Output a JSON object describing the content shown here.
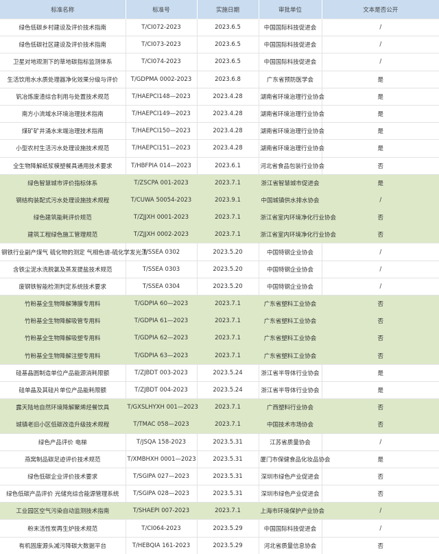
{
  "colors": {
    "header_bg": "#c9dcf0",
    "highlight_row": "#dde8c9"
  },
  "headers": [
    "标准名称",
    "标准号",
    "实施日期",
    "审批单位",
    "文本是否公开"
  ],
  "rows": [
    {
      "name": "绿色低碳乡村建设及评价技术指南",
      "code": "T/CI072-2023",
      "date": "2023.6.5",
      "org": "中国国际科技促进会",
      "public": "/",
      "highlight": false
    },
    {
      "name": "绿色低碳社区建设及评价技术指南",
      "code": "T/CI073-2023",
      "date": "2023.6.5",
      "org": "中国国际科技促进会",
      "public": "/",
      "highlight": false
    },
    {
      "name": "卫星对地观测下的草地碳指标监测体系",
      "code": "T/CI074-2023",
      "date": "2023.6.5",
      "org": "中国国际科技促进会",
      "public": "/",
      "highlight": false
    },
    {
      "name": "生活饮用水水质处理器净化效果分级与评价",
      "code": "T/GDPMA 0002-2023",
      "date": "2023.6.8",
      "org": "广东省预防医学会",
      "public": "是",
      "highlight": false
    },
    {
      "name": "钒冶炼废渣综合利用与处置技术规范",
      "code": "T/HAEPCI148—2023",
      "date": "2023.4.28",
      "org": "湖南省环境治理行业协会",
      "public": "是",
      "highlight": false
    },
    {
      "name": "南方小流域水环境治理技术指南",
      "code": "T/HAEPCI149—2023",
      "date": "2023.4.28",
      "org": "湖南省环境治理行业协会",
      "public": "是",
      "highlight": false
    },
    {
      "name": "煤矿矿井涌水末端治理技术指南",
      "code": "T/HAEPCI150—2023",
      "date": "2023.4.28",
      "org": "湖南省环境治理行业协会",
      "public": "是",
      "highlight": false
    },
    {
      "name": "小型农村生活污水处理设施技术规范",
      "code": "T/HAEPCI151—2023",
      "date": "2023.4.28",
      "org": "湖南省环境治理行业协会",
      "public": "是",
      "highlight": false
    },
    {
      "name": "全生物降解纸浆模塑餐具通用技术要求",
      "code": "T/HBFPIA 014—2023",
      "date": "2023.6.1",
      "org": "河北省食品包装行业协会",
      "public": "否",
      "highlight": false
    },
    {
      "name": "绿色智慧城市评价指标体系",
      "code": "T/ZSCPA 001-2023",
      "date": "2023.7.1",
      "org": "浙江省智慧城市促进会",
      "public": "是",
      "highlight": true
    },
    {
      "name": "钢结构装配式污水处理设施技术规程",
      "code": "T/CUWA 50054-2023",
      "date": "2023.9.1",
      "org": "中国城镇供水排水协会",
      "public": "/",
      "highlight": true
    },
    {
      "name": "绿色建筑能耗评价规范",
      "code": "T/ZJJXH 0001-2023",
      "date": "2023.7.1",
      "org": "浙江省室内环境净化行业协会",
      "public": "否",
      "highlight": true
    },
    {
      "name": "建筑工程绿色施工管理规范",
      "code": "T/ZJJXH 0002-2023",
      "date": "2023.7.1",
      "org": "浙江省室内环境净化行业协会",
      "public": "否",
      "highlight": true
    },
    {
      "name": "钢铁行业副产煤气 硫化物的测定 气相色谱-硫化学发光法",
      "code": "T/SSEA 0302",
      "date": "2023.5.20",
      "org": "中国特钢企业协会",
      "public": "/",
      "highlight": false
    },
    {
      "name": "含铁尘泥水洗脱氯及蒸发提盐技术规范",
      "code": "T/SSEA 0303",
      "date": "2023.5.20",
      "org": "中国特钢企业协会",
      "public": "/",
      "highlight": false
    },
    {
      "name": "废钢铁智能检测判定系统技术要求",
      "code": "T/SSEA 0304",
      "date": "2023.5.20",
      "org": "中国特钢企业协会",
      "public": "/",
      "highlight": false
    },
    {
      "name": "竹粉基全生物降解薄膜专用料",
      "code": "T/GDPIA 60—2023",
      "date": "2023.7.1",
      "org": "广东省塑料工业协会",
      "public": "否",
      "highlight": true
    },
    {
      "name": "竹粉基全生物降解吸管专用料",
      "code": "T/GDPIA 61—2023",
      "date": "2023.7.1",
      "org": "广东省塑料工业协会",
      "public": "否",
      "highlight": true
    },
    {
      "name": "竹粉基全生物降解吸塑专用料",
      "code": "T/GDPIA 62—2023",
      "date": "2023.7.1",
      "org": "广东省塑料工业协会",
      "public": "否",
      "highlight": true
    },
    {
      "name": "竹粉基全生物降解注塑专用料",
      "code": "T/GDPIA 63—2023",
      "date": "2023.7.1",
      "org": "广东省塑料工业协会",
      "public": "否",
      "highlight": true
    },
    {
      "name": "硅基晶圆制造单位产品能源消耗限额",
      "code": "T/ZJBDT 003-2023",
      "date": "2023.5.24",
      "org": "浙江省半导体行业协会",
      "public": "是",
      "highlight": false
    },
    {
      "name": "硅单晶及其硅片单位产品能耗限额",
      "code": "T/ZJBDT 004-2023",
      "date": "2023.5.24",
      "org": "浙江省半导体行业协会",
      "public": "是",
      "highlight": false
    },
    {
      "name": "露天陆地自然环境降解聚烯烃餐饮具",
      "code": "T/GXSLHYXH 001—2023",
      "date": "2023.7.1",
      "org": "广西塑料行业协会",
      "public": "否",
      "highlight": true
    },
    {
      "name": "城镇老旧小区低碳改造升级技术规程",
      "code": "T/TMAC 058—2023",
      "date": "2023.7.1",
      "org": "中国技术市场协会",
      "public": "否",
      "highlight": true
    },
    {
      "name": "绿色产品评价 电梯",
      "code": "T/JSQA 158-2023",
      "date": "2023.5.31",
      "org": "江苏省质量协会",
      "public": "/",
      "highlight": false
    },
    {
      "name": "燕窝制品碳足迹评价技术规范",
      "code": "T/XMBHXH 0001—2023",
      "date": "2023.5.31",
      "org": "厦门市保健食品化妆品协会",
      "public": "是",
      "highlight": false
    },
    {
      "name": "绿色低碳企业评价技术要求",
      "code": "T/SGIPA 027—2023",
      "date": "2023.5.31",
      "org": "深圳市绿色产业促进会",
      "public": "否",
      "highlight": false
    },
    {
      "name": "绿色低碳产品评价 光储充综合能源管理系统",
      "code": "T/SGIPA 028—2023",
      "date": "2023.5.31",
      "org": "深圳市绿色产业促进会",
      "public": "否",
      "highlight": false
    },
    {
      "name": "工业园区空气污染自动监测技术指南",
      "code": "T/SHAEPI 007-2023",
      "date": "2023.7.1",
      "org": "上海市环境保护产业协会",
      "public": "/",
      "highlight": true
    },
    {
      "name": "粉末活性炭再生炉技术规范",
      "code": "T/CI064-2023",
      "date": "2023.5.29",
      "org": "中国国际科技促进会",
      "public": "/",
      "highlight": false
    },
    {
      "name": "有机固废源头减污降碳大数据平台",
      "code": "T/HEBQIA 161-2023",
      "date": "2023.5.29",
      "org": "河北省质量信息协会",
      "public": "否",
      "highlight": false
    }
  ]
}
